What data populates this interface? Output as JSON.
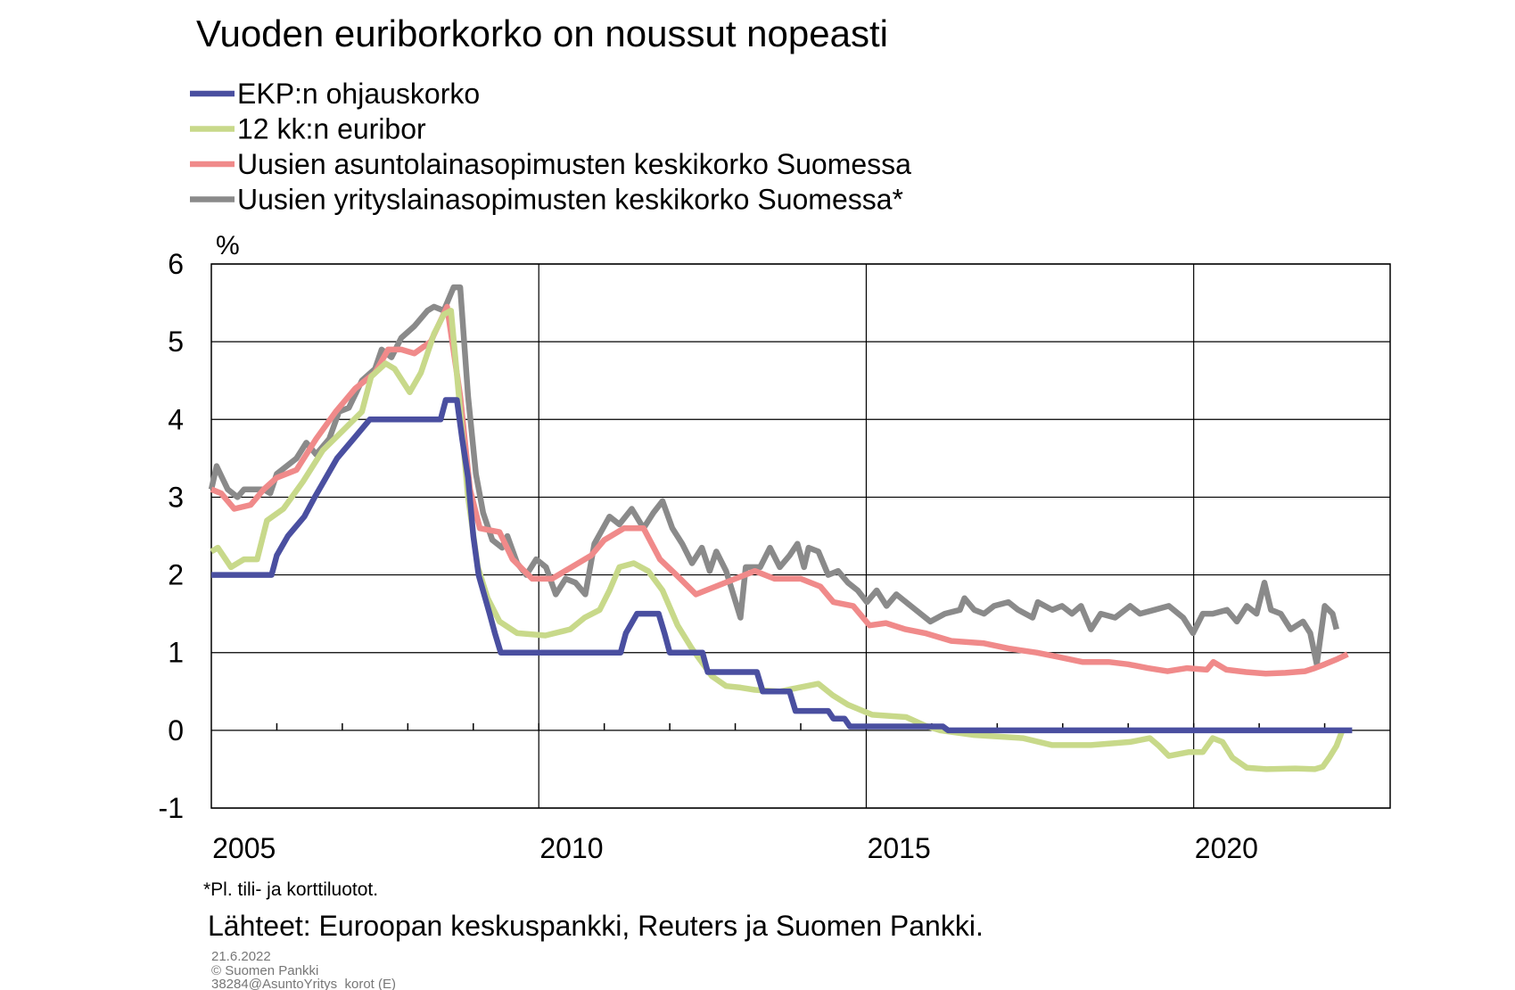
{
  "chart_data": {
    "type": "line",
    "title": "Vuoden euriborkorko on noussut nopeasti",
    "y_unit_label": "%",
    "ylim": [
      -1,
      6
    ],
    "yticks": [
      -1,
      0,
      1,
      2,
      3,
      4,
      5,
      6
    ],
    "xlim": [
      2005,
      2023
    ],
    "xticks": [
      {
        "value": 2005.5,
        "label": "2005"
      },
      {
        "value": 2010.5,
        "label": "2010"
      },
      {
        "value": 2015.5,
        "label": "2015"
      },
      {
        "value": 2020.5,
        "label": "2020"
      }
    ],
    "xgrid": [
      2010,
      2015,
      2020
    ],
    "x_minor_ticks": [
      2006,
      2007,
      2008,
      2009,
      2010,
      2011,
      2012,
      2013,
      2014,
      2015,
      2016,
      2017,
      2018,
      2019,
      2020,
      2021,
      2022
    ],
    "grid": true,
    "footnote": "*Pl. tili- ja korttiluotot.",
    "source": "Lähteet: Euroopan keskuspankki, Reuters ja Suomen Pankki.",
    "date": "21.6.2022",
    "copyright": "© Suomen Pankki",
    "code": "38284@AsuntoYritys_korot  (E)",
    "series": [
      {
        "name": "EKP:n ohjauskorko",
        "color": "#4a4fa0",
        "x": [
          2005.0,
          2005.92,
          2006.0,
          2006.17,
          2006.42,
          2006.58,
          2006.75,
          2006.92,
          2007.17,
          2007.42,
          2008.5,
          2008.58,
          2008.75,
          2008.83,
          2008.92,
          2009.0,
          2009.08,
          2009.25,
          2009.33,
          2009.42,
          2011.25,
          2011.33,
          2011.5,
          2011.83,
          2011.92,
          2012.0,
          2012.5,
          2012.58,
          2013.33,
          2013.42,
          2013.83,
          2013.92,
          2014.42,
          2014.5,
          2014.67,
          2014.75,
          2016.17,
          2016.25,
          2022.42
        ],
        "values": [
          2.0,
          2.0,
          2.25,
          2.5,
          2.75,
          3.0,
          3.25,
          3.5,
          3.75,
          4.0,
          4.0,
          4.25,
          4.25,
          3.75,
          3.25,
          2.5,
          2.0,
          1.5,
          1.25,
          1.0,
          1.0,
          1.25,
          1.5,
          1.5,
          1.25,
          1.0,
          1.0,
          0.75,
          0.75,
          0.5,
          0.5,
          0.25,
          0.25,
          0.15,
          0.15,
          0.05,
          0.05,
          0.0,
          0.0
        ]
      },
      {
        "name": "12 kk:n euribor",
        "color": "#c8d98a",
        "x": [
          2005.0,
          2005.1,
          2005.3,
          2005.5,
          2005.7,
          2005.85,
          2006.1,
          2006.4,
          2006.7,
          2007.0,
          2007.3,
          2007.44,
          2007.66,
          2007.8,
          2008.03,
          2008.2,
          2008.4,
          2008.55,
          2008.66,
          2008.78,
          2008.92,
          2009.07,
          2009.22,
          2009.4,
          2009.67,
          2010.1,
          2010.48,
          2010.7,
          2010.93,
          2011.08,
          2011.23,
          2011.45,
          2011.67,
          2011.89,
          2012.12,
          2012.34,
          2012.64,
          2012.86,
          2013.08,
          2013.3,
          2013.68,
          2013.97,
          2014.27,
          2014.49,
          2014.72,
          2015.09,
          2015.61,
          2015.9,
          2016.13,
          2016.65,
          2017.39,
          2017.84,
          2018.43,
          2019.03,
          2019.33,
          2019.47,
          2019.62,
          2019.92,
          2020.14,
          2020.29,
          2020.44,
          2020.59,
          2020.81,
          2021.11,
          2021.55,
          2021.85,
          2021.97,
          2022.07,
          2022.18,
          2022.27
        ],
        "values": [
          2.3,
          2.35,
          2.1,
          2.2,
          2.2,
          2.7,
          2.85,
          3.2,
          3.6,
          3.85,
          4.1,
          4.55,
          4.72,
          4.65,
          4.35,
          4.6,
          5.1,
          5.35,
          5.4,
          4.3,
          3.0,
          2.1,
          1.7,
          1.4,
          1.25,
          1.22,
          1.3,
          1.45,
          1.55,
          1.8,
          2.1,
          2.15,
          2.05,
          1.8,
          1.35,
          1.05,
          0.7,
          0.57,
          0.55,
          0.52,
          0.5,
          0.55,
          0.6,
          0.45,
          0.33,
          0.2,
          0.17,
          0.06,
          0.0,
          -0.06,
          -0.1,
          -0.19,
          -0.19,
          -0.15,
          -0.1,
          -0.2,
          -0.33,
          -0.28,
          -0.28,
          -0.1,
          -0.15,
          -0.35,
          -0.48,
          -0.5,
          -0.49,
          -0.5,
          -0.47,
          -0.35,
          -0.2,
          0.0
        ]
      },
      {
        "name": "Uusien asuntolainasopimusten keskikorko Suomessa",
        "color": "#f08a8a",
        "x": [
          2005.0,
          2005.15,
          2005.35,
          2005.6,
          2005.8,
          2006.0,
          2006.3,
          2006.6,
          2006.9,
          2007.2,
          2007.5,
          2007.7,
          2007.9,
          2008.1,
          2008.35,
          2008.6,
          2008.8,
          2008.95,
          2009.1,
          2009.4,
          2009.6,
          2009.9,
          2010.2,
          2010.5,
          2010.8,
          2011.0,
          2011.3,
          2011.6,
          2011.85,
          2012.1,
          2012.4,
          2012.7,
          2013.0,
          2013.3,
          2013.6,
          2014.0,
          2014.3,
          2014.5,
          2014.8,
          2015.05,
          2015.3,
          2015.6,
          2015.9,
          2016.3,
          2016.8,
          2017.2,
          2017.6,
          2017.9,
          2018.3,
          2018.7,
          2019.0,
          2019.3,
          2019.6,
          2019.9,
          2020.2,
          2020.3,
          2020.5,
          2020.8,
          2021.1,
          2021.4,
          2021.7,
          2021.85,
          2022.0,
          2022.2,
          2022.35
        ],
        "values": [
          3.1,
          3.05,
          2.85,
          2.9,
          3.1,
          3.25,
          3.35,
          3.75,
          4.1,
          4.4,
          4.6,
          4.9,
          4.9,
          4.85,
          5.0,
          5.45,
          4.3,
          3.1,
          2.6,
          2.55,
          2.2,
          1.95,
          1.95,
          2.1,
          2.25,
          2.45,
          2.6,
          2.6,
          2.2,
          2.0,
          1.75,
          1.85,
          1.95,
          2.05,
          1.95,
          1.95,
          1.85,
          1.65,
          1.6,
          1.35,
          1.38,
          1.3,
          1.25,
          1.15,
          1.12,
          1.05,
          1.0,
          0.95,
          0.88,
          0.88,
          0.85,
          0.8,
          0.76,
          0.8,
          0.78,
          0.88,
          0.78,
          0.75,
          0.73,
          0.74,
          0.76,
          0.8,
          0.85,
          0.92,
          0.98
        ]
      },
      {
        "name": "Uusien yrityslainasopimusten keskikorko Suomessa*",
        "color": "#8a8a8a",
        "x": [
          2005.0,
          2005.08,
          2005.25,
          2005.4,
          2005.5,
          2005.8,
          2005.9,
          2006.0,
          2006.3,
          2006.45,
          2006.6,
          2006.8,
          2006.95,
          2007.1,
          2007.3,
          2007.5,
          2007.6,
          2007.75,
          2007.9,
          2008.1,
          2008.3,
          2008.4,
          2008.55,
          2008.7,
          2008.8,
          2008.92,
          2009.04,
          2009.15,
          2009.29,
          2009.44,
          2009.52,
          2009.67,
          2009.81,
          2009.96,
          2010.11,
          2010.26,
          2010.41,
          2010.56,
          2010.71,
          2010.85,
          2011.08,
          2011.23,
          2011.42,
          2011.6,
          2011.75,
          2011.89,
          2012.04,
          2012.19,
          2012.34,
          2012.49,
          2012.61,
          2012.71,
          2012.86,
          2013.08,
          2013.16,
          2013.38,
          2013.53,
          2013.68,
          2013.83,
          2013.95,
          2014.05,
          2014.12,
          2014.27,
          2014.42,
          2014.57,
          2014.72,
          2014.87,
          2015.01,
          2015.16,
          2015.31,
          2015.46,
          2015.68,
          2015.98,
          2016.2,
          2016.43,
          2016.5,
          2016.65,
          2016.8,
          2016.95,
          2017.17,
          2017.32,
          2017.54,
          2017.62,
          2017.84,
          2017.99,
          2018.14,
          2018.28,
          2018.43,
          2018.58,
          2018.8,
          2019.03,
          2019.18,
          2019.4,
          2019.62,
          2019.84,
          2019.99,
          2020.14,
          2020.29,
          2020.51,
          2020.66,
          2020.81,
          2020.96,
          2021.08,
          2021.18,
          2021.33,
          2021.48,
          2021.67,
          2021.78,
          2021.88,
          2022.0,
          2022.12,
          2022.18
        ],
        "values": [
          3.1,
          3.4,
          3.1,
          3.0,
          3.1,
          3.1,
          3.05,
          3.3,
          3.5,
          3.7,
          3.55,
          3.75,
          4.1,
          4.15,
          4.5,
          4.65,
          4.9,
          4.8,
          5.05,
          5.2,
          5.4,
          5.45,
          5.4,
          5.7,
          5.7,
          4.3,
          3.3,
          2.8,
          2.45,
          2.35,
          2.5,
          2.15,
          2.0,
          2.2,
          2.1,
          1.75,
          1.95,
          1.9,
          1.75,
          2.4,
          2.75,
          2.65,
          2.85,
          2.6,
          2.8,
          2.95,
          2.6,
          2.4,
          2.15,
          2.35,
          2.05,
          2.3,
          2.05,
          1.45,
          2.1,
          2.1,
          2.35,
          2.1,
          2.25,
          2.4,
          2.1,
          2.35,
          2.3,
          2.0,
          2.05,
          1.9,
          1.8,
          1.65,
          1.8,
          1.6,
          1.75,
          1.6,
          1.4,
          1.5,
          1.55,
          1.7,
          1.55,
          1.5,
          1.6,
          1.65,
          1.55,
          1.45,
          1.65,
          1.55,
          1.6,
          1.5,
          1.6,
          1.3,
          1.5,
          1.45,
          1.6,
          1.5,
          1.55,
          1.6,
          1.45,
          1.25,
          1.5,
          1.5,
          1.55,
          1.4,
          1.6,
          1.5,
          1.9,
          1.55,
          1.5,
          1.3,
          1.4,
          1.25,
          0.85,
          1.6,
          1.5,
          1.3
        ]
      }
    ]
  }
}
